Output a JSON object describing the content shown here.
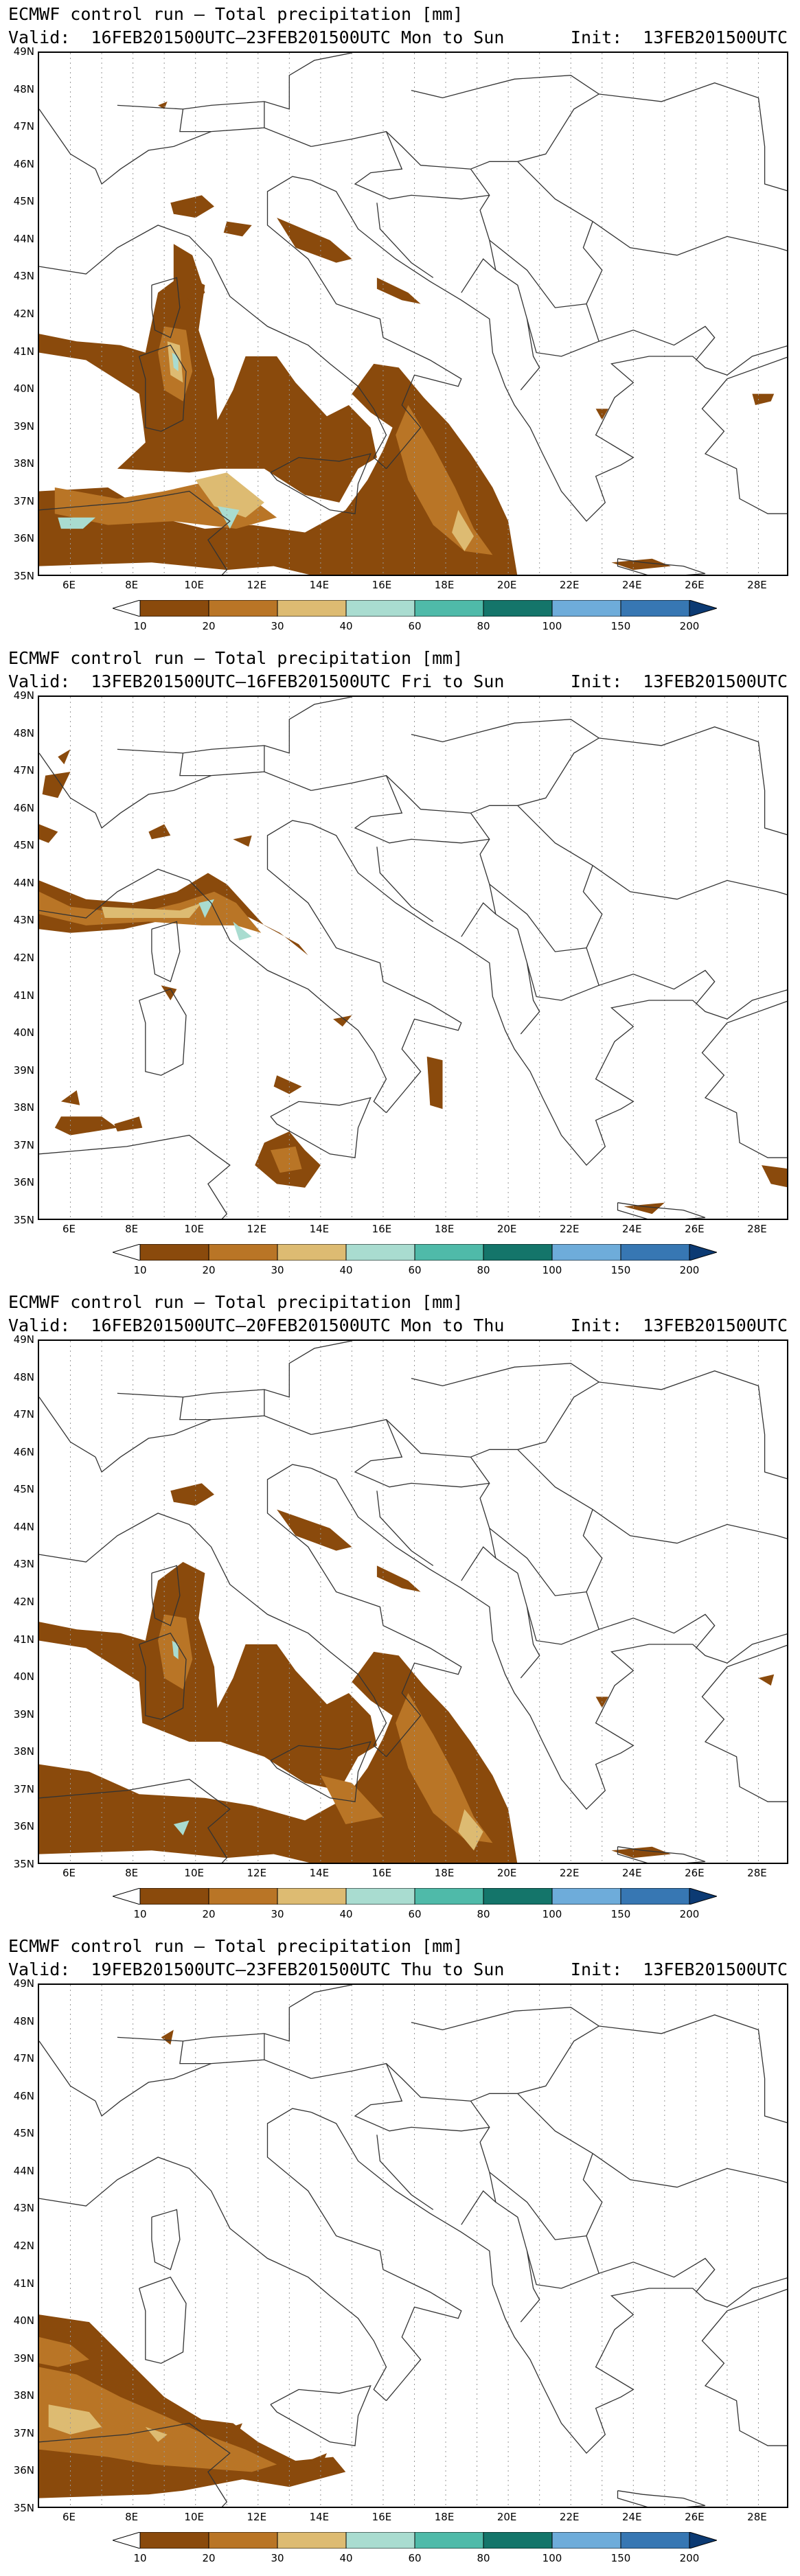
{
  "colors": {
    "c10": "#8a4a0c",
    "c20": "#b97526",
    "c30": "#ddbb72",
    "c40": "#a9dcd0",
    "c60": "#4fbaa9",
    "c80": "#14756a",
    "c100": "#6eacda",
    "c150": "#3777b3",
    "c200": "#0c3a73",
    "border": "#333333",
    "grid": "#999999"
  },
  "axes": {
    "lat_labels": [
      "49N",
      "48N",
      "47N",
      "46N",
      "45N",
      "44N",
      "43N",
      "42N",
      "41N",
      "40N",
      "39N",
      "38N",
      "37N",
      "36N",
      "35N"
    ],
    "lon_labels": [
      "6E",
      "8E",
      "10E",
      "12E",
      "14E",
      "16E",
      "18E",
      "20E",
      "22E",
      "24E",
      "26E",
      "28E"
    ]
  },
  "colorbar": {
    "labels": [
      "10",
      "20",
      "30",
      "40",
      "60",
      "80",
      "100",
      "150",
      "200"
    ]
  },
  "panels": [
    {
      "title": "ECMWF control run – Total precipitation [mm]",
      "valid": "Valid:  16FEB201500UTC–23FEB201500UTC Mon to Sun",
      "init": "Init:  13FEB201500UTC"
    },
    {
      "title": "ECMWF control run – Total precipitation [mm]",
      "valid": "Valid:  13FEB201500UTC–16FEB201500UTC Fri to Sun",
      "init": "Init:  13FEB201500UTC"
    },
    {
      "title": "ECMWF control run – Total precipitation [mm]",
      "valid": "Valid:  16FEB201500UTC–20FEB201500UTC Mon to Thu",
      "init": "Init:  13FEB201500UTC"
    },
    {
      "title": "ECMWF control run – Total precipitation [mm]",
      "valid": "Valid:  19FEB201500UTC–23FEB201500UTC Thu to Sun",
      "init": "Init:  13FEB201500UTC"
    }
  ]
}
